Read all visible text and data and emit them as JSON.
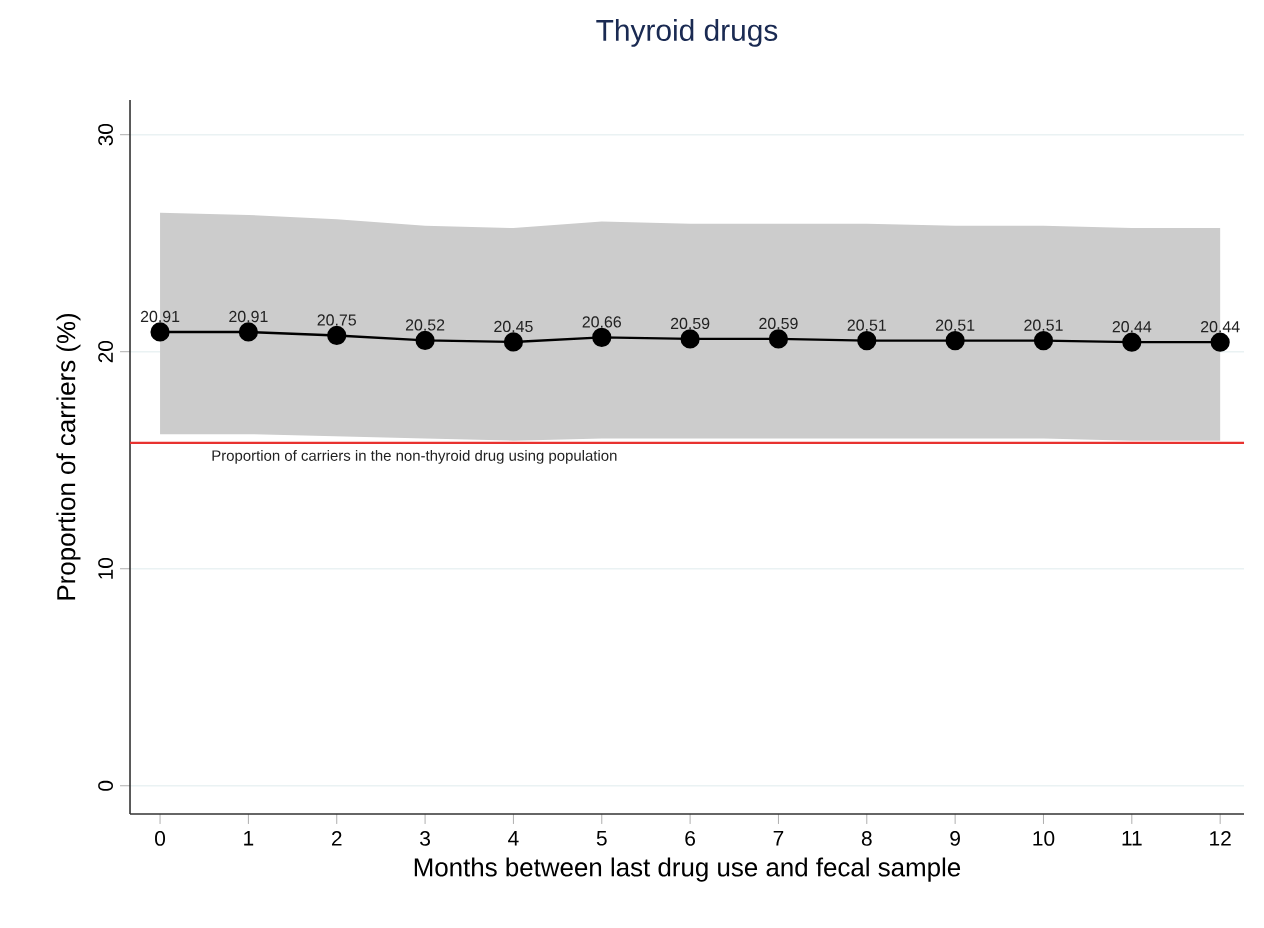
{
  "chart_data": {
    "type": "line",
    "title": "Thyroid drugs",
    "xlabel": "Months between last drug use and fecal sample",
    "ylabel": "Proportion of carriers (%)",
    "x": [
      0,
      1,
      2,
      3,
      4,
      5,
      6,
      7,
      8,
      9,
      10,
      11,
      12
    ],
    "series": [
      {
        "color": "#000000",
        "values": [
          20.91,
          20.91,
          20.75,
          20.52,
          20.45,
          20.66,
          20.59,
          20.59,
          20.51,
          20.51,
          20.51,
          20.44,
          20.44
        ],
        "lower": [
          16.2,
          16.2,
          16.1,
          16.0,
          15.9,
          16.0,
          16.0,
          16.0,
          16.0,
          16.0,
          16.0,
          15.9,
          15.9
        ],
        "upper": [
          26.4,
          26.3,
          26.1,
          25.8,
          25.7,
          26.0,
          25.9,
          25.9,
          25.9,
          25.8,
          25.8,
          25.7,
          25.7
        ]
      }
    ],
    "xlim": [
      -0.34,
      12.27
    ],
    "ylim": [
      -1.3,
      31.6
    ],
    "xticks": [
      0,
      1,
      2,
      3,
      4,
      5,
      6,
      7,
      8,
      9,
      10,
      11,
      12
    ],
    "yticks": [
      0,
      10,
      20,
      30
    ],
    "ref_lines": [
      {
        "axis": "y",
        "value": 15.8,
        "label": "Proportion of carriers in the non-thyroid drug using population",
        "color": "#e8322f"
      }
    ],
    "data_labels": true,
    "grid": "y",
    "marker": "circle",
    "line_style": "solid"
  }
}
